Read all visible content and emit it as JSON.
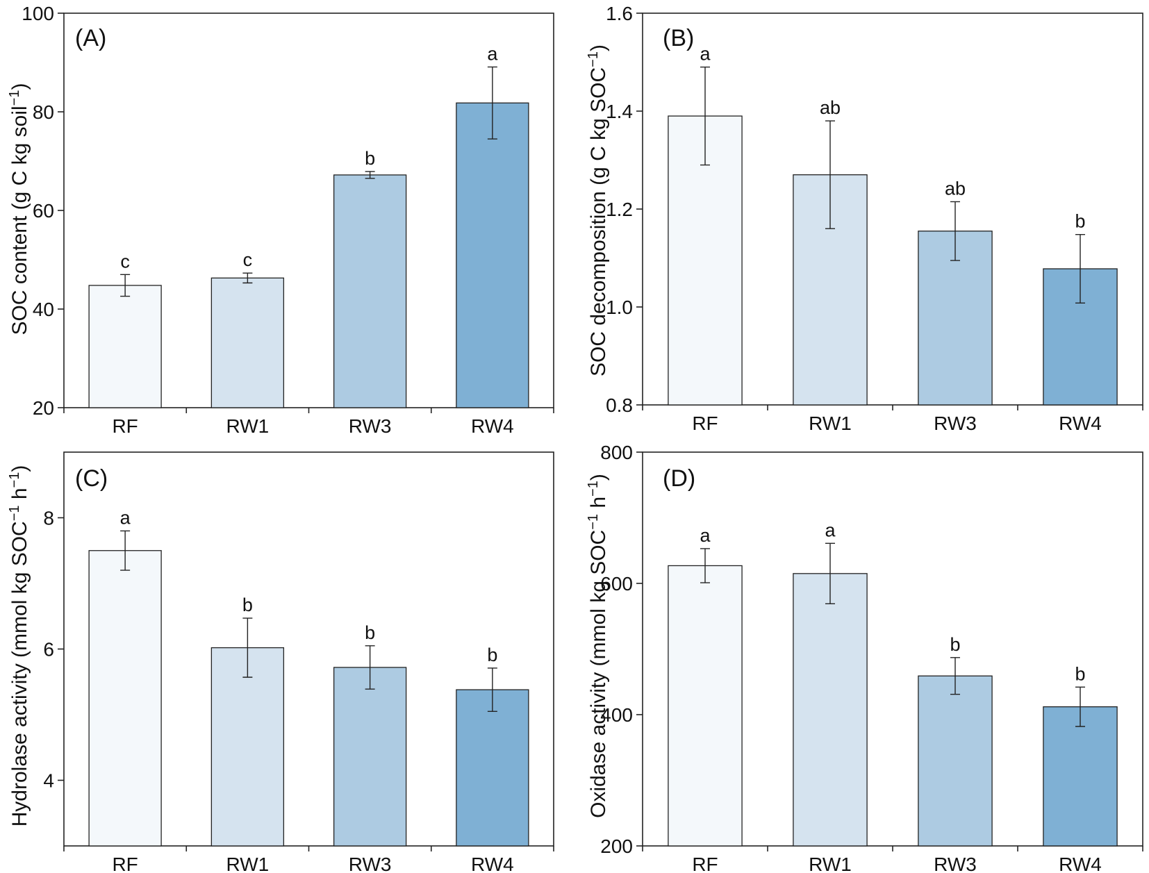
{
  "colors": {
    "bars": [
      "#f4f8fb",
      "#d5e3ef",
      "#adcbe2",
      "#7fb0d4"
    ],
    "axis": "#222222"
  },
  "chart_data": [
    {
      "type": "bar",
      "panel": "(A)",
      "categories": [
        "RF",
        "RW1",
        "RW3",
        "RW4"
      ],
      "values": [
        44.8,
        46.3,
        67.2,
        81.8
      ],
      "errors": [
        2.2,
        1.0,
        0.7,
        7.3
      ],
      "significance": [
        "c",
        "c",
        "b",
        "a"
      ],
      "ylabel": "SOC content (g C kg soil",
      "ylabel_sup": "−1",
      "ylabel_end": ")",
      "ylim": [
        20,
        100
      ],
      "yticks": [
        20,
        40,
        60,
        80,
        100
      ],
      "ytick_labels": [
        "20",
        "40",
        "60",
        "80",
        "100"
      ]
    },
    {
      "type": "bar",
      "panel": "(B)",
      "categories": [
        "RF",
        "RW1",
        "RW3",
        "RW4"
      ],
      "values": [
        1.39,
        1.27,
        1.155,
        1.078
      ],
      "errors": [
        0.1,
        0.11,
        0.06,
        0.07
      ],
      "significance": [
        "a",
        "ab",
        "ab",
        "b"
      ],
      "ylabel": "SOC decomposition (g C kg SOC",
      "ylabel_sup": "−1",
      "ylabel_end": ")",
      "ylim": [
        0.8,
        1.6
      ],
      "yticks": [
        0.8,
        1.0,
        1.2,
        1.4,
        1.6
      ],
      "ytick_labels": [
        "0.8",
        "1.0",
        "1.2",
        "1.4",
        "1.6"
      ]
    },
    {
      "type": "bar",
      "panel": "(C)",
      "categories": [
        "RF",
        "RW1",
        "RW3",
        "RW4"
      ],
      "values": [
        7.5,
        6.02,
        5.72,
        5.38
      ],
      "errors": [
        0.3,
        0.45,
        0.33,
        0.33
      ],
      "significance": [
        "a",
        "b",
        "b",
        "b"
      ],
      "ylabel": "Hydrolase activity (mmol kg SOC",
      "ylabel_sup": "−1",
      "ylabel_end": " h",
      "ylabel_sup2": "−1",
      "ylabel_end2": ")",
      "ylim": [
        3,
        9
      ],
      "yticks": [
        4,
        6,
        8
      ],
      "ytick_labels": [
        "4",
        "6",
        "8"
      ]
    },
    {
      "type": "bar",
      "panel": "(D)",
      "categories": [
        "RF",
        "RW1",
        "RW3",
        "RW4"
      ],
      "values": [
        627,
        615,
        459,
        412
      ],
      "errors": [
        26,
        46,
        28,
        30
      ],
      "significance": [
        "a",
        "a",
        "b",
        "b"
      ],
      "ylabel": "Oxidase activity (mmol kg SOC",
      "ylabel_sup": "−1",
      "ylabel_end": " h",
      "ylabel_sup2": "−1",
      "ylabel_end2": ")",
      "ylim": [
        200,
        800
      ],
      "yticks": [
        200,
        400,
        600,
        800
      ],
      "ytick_labels": [
        "200",
        "400",
        "600",
        "800"
      ]
    }
  ]
}
